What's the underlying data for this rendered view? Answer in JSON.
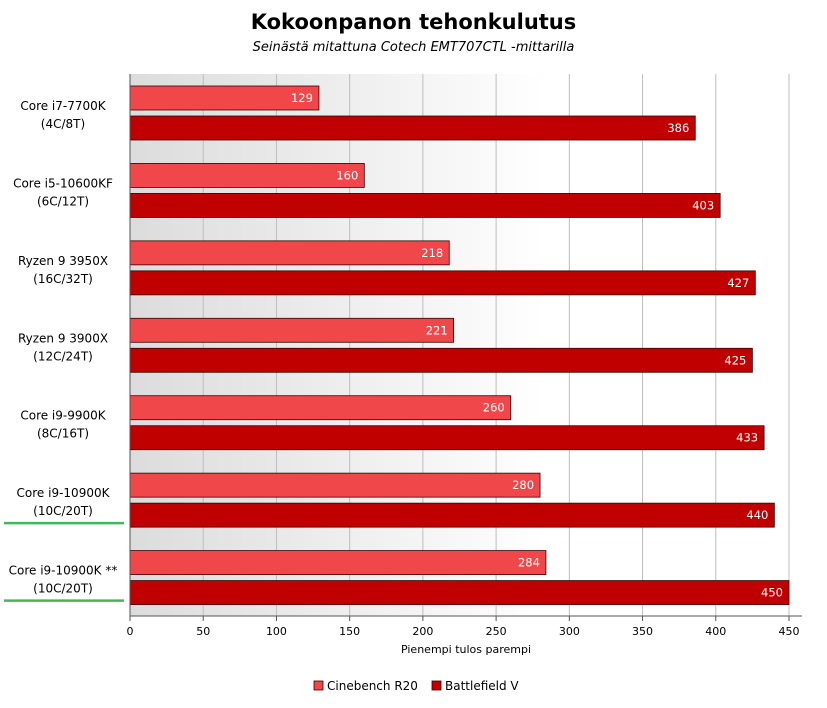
{
  "chart_data": {
    "type": "bar",
    "orientation": "horizontal",
    "title": "Kokoonpanon tehonkulutus",
    "subtitle": "Seinästä mitattuna Cotech EMT707CTL -mittarilla",
    "xlabel": "Pienempi tulos parempi",
    "ylabel": "",
    "xlim": [
      0,
      450
    ],
    "xticks": [
      0,
      50,
      100,
      150,
      200,
      250,
      300,
      350,
      400,
      450
    ],
    "grid": true,
    "legend_position": "bottom",
    "categories": [
      {
        "line1": "Core i7-7700K",
        "line2": "(4C/8T)",
        "highlight": false
      },
      {
        "line1": "Core i5-10600KF",
        "line2": "(6C/12T)",
        "highlight": false
      },
      {
        "line1": "Ryzen 9 3950X",
        "line2": "(16C/32T)",
        "highlight": false
      },
      {
        "line1": "Ryzen 9 3900X",
        "line2": "(12C/24T)",
        "highlight": false
      },
      {
        "line1": "Core i9-9900K",
        "line2": "(8C/16T)",
        "highlight": false
      },
      {
        "line1": "Core i9-10900K",
        "line2": "(10C/20T)",
        "highlight": true
      },
      {
        "line1": "Core i9-10900K **",
        "line2": "(10C/20T)",
        "highlight": true
      }
    ],
    "series": [
      {
        "name": "Cinebench R20",
        "color": "#f0474a",
        "values": [
          129,
          160,
          218,
          221,
          260,
          280,
          284
        ]
      },
      {
        "name": "Battlefield V",
        "color": "#c00000",
        "values": [
          386,
          403,
          427,
          425,
          433,
          440,
          450
        ]
      }
    ],
    "highlight_color": "#3dbb5c"
  }
}
